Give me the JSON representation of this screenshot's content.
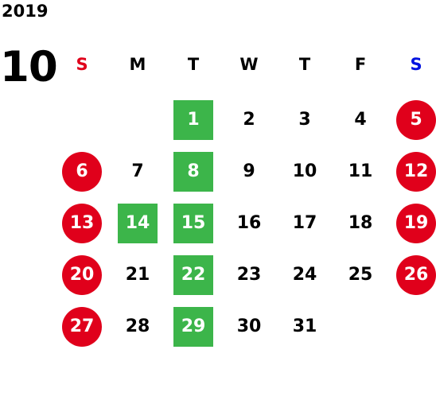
{
  "calendar": {
    "year": "2019",
    "month": "10",
    "weekdays": [
      "S",
      "M",
      "T",
      "W",
      "T",
      "F",
      "S"
    ],
    "colors": {
      "holiday": "#e0001b",
      "highlight": "#3cb54a",
      "sunday_label": "#e0001b",
      "saturday_label": "#0012e0"
    },
    "first_weekday_index": 2,
    "days": [
      {
        "n": "1",
        "style": "green"
      },
      {
        "n": "2",
        "style": ""
      },
      {
        "n": "3",
        "style": ""
      },
      {
        "n": "4",
        "style": ""
      },
      {
        "n": "5",
        "style": "holiday"
      },
      {
        "n": "6",
        "style": "holiday"
      },
      {
        "n": "7",
        "style": ""
      },
      {
        "n": "8",
        "style": "green"
      },
      {
        "n": "9",
        "style": ""
      },
      {
        "n": "10",
        "style": ""
      },
      {
        "n": "11",
        "style": ""
      },
      {
        "n": "12",
        "style": "holiday"
      },
      {
        "n": "13",
        "style": "holiday"
      },
      {
        "n": "14",
        "style": "green"
      },
      {
        "n": "15",
        "style": "green"
      },
      {
        "n": "16",
        "style": ""
      },
      {
        "n": "17",
        "style": ""
      },
      {
        "n": "18",
        "style": ""
      },
      {
        "n": "19",
        "style": "holiday"
      },
      {
        "n": "20",
        "style": "holiday"
      },
      {
        "n": "21",
        "style": ""
      },
      {
        "n": "22",
        "style": "green"
      },
      {
        "n": "23",
        "style": ""
      },
      {
        "n": "24",
        "style": ""
      },
      {
        "n": "25",
        "style": ""
      },
      {
        "n": "26",
        "style": "holiday"
      },
      {
        "n": "27",
        "style": "holiday"
      },
      {
        "n": "28",
        "style": ""
      },
      {
        "n": "29",
        "style": "green"
      },
      {
        "n": "30",
        "style": ""
      },
      {
        "n": "31",
        "style": ""
      }
    ]
  }
}
